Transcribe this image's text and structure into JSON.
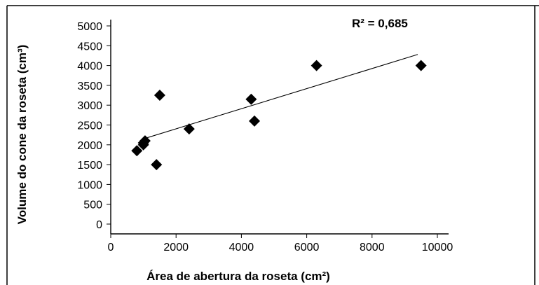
{
  "chart_data": {
    "type": "scatter",
    "title": "",
    "xlabel": "Área de abertura da roseta (cm²)",
    "ylabel": "Volume do cone da roseta (cm³)",
    "xlim": [
      0,
      10000
    ],
    "ylim": [
      0,
      5000
    ],
    "x_ticks": [
      0,
      2000,
      4000,
      6000,
      8000,
      10000
    ],
    "y_ticks": [
      0,
      500,
      1000,
      1500,
      2000,
      2500,
      3000,
      3500,
      4000,
      4500,
      5000
    ],
    "series": [
      {
        "points": [
          {
            "x": 800,
            "y": 1850
          },
          {
            "x": 1000,
            "y": 2000
          },
          {
            "x": 1050,
            "y": 2100
          },
          {
            "x": 1000,
            "y": 2050
          },
          {
            "x": 1400,
            "y": 1500
          },
          {
            "x": 1500,
            "y": 3250
          },
          {
            "x": 2400,
            "y": 2400
          },
          {
            "x": 4300,
            "y": 3150
          },
          {
            "x": 4400,
            "y": 2600
          },
          {
            "x": 6300,
            "y": 4000
          },
          {
            "x": 9500,
            "y": 4000
          }
        ]
      }
    ],
    "trendline": {
      "x": [
        1000,
        9400
      ],
      "y": [
        2150,
        4280
      ]
    },
    "annotation": "R² = 0,685",
    "grid": false,
    "point_color": "#000000"
  }
}
